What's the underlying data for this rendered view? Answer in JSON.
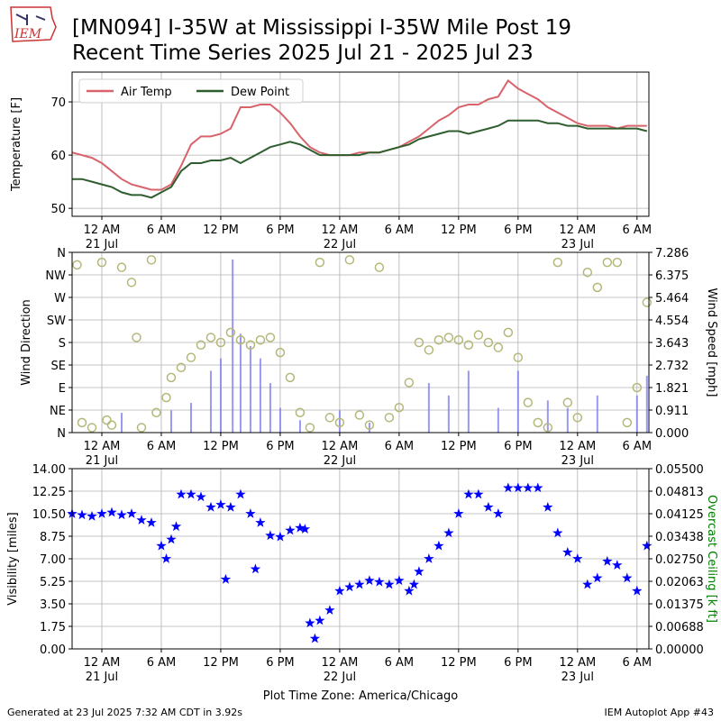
{
  "header": {
    "logo": "IEM",
    "title_lines": [
      "[MN094] I-35W at Mississippi I-35W Mile Post 19",
      "Recent Time Series 2025 Jul 21 - 2025 Jul 23"
    ]
  },
  "footer": {
    "left": "Generated at 23 Jul 2025 7:32 AM CDT in 3.92s",
    "right": "IEM Autoplot App #43",
    "xlabel": "Plot Time Zone: America/Chicago"
  },
  "chart_data": [
    {
      "type": "line",
      "ylabel": "Temperature [F]",
      "grid": true,
      "legend": "upper left",
      "xlim": [
        -3,
        55.2
      ],
      "xticks": [
        {
          "value": 0,
          "label": "12 AM\n21 Jul"
        },
        {
          "value": 6,
          "label": "6 AM"
        },
        {
          "value": 12,
          "label": "12 PM"
        },
        {
          "value": 18,
          "label": "6 PM"
        },
        {
          "value": 24,
          "label": "12 AM\n22 Jul"
        },
        {
          "value": 30,
          "label": "6 AM"
        },
        {
          "value": 36,
          "label": "12 PM"
        },
        {
          "value": 42,
          "label": "6 PM"
        },
        {
          "value": 48,
          "label": "12 AM\n23 Jul"
        },
        {
          "value": 54,
          "label": "6 AM"
        }
      ],
      "ylim": [
        48.5,
        75.6
      ],
      "yticks": [
        50,
        60,
        70
      ],
      "x": [
        -3,
        -2,
        -1,
        0,
        1,
        2,
        3,
        4,
        5,
        6,
        7,
        8,
        9,
        10,
        11,
        12,
        13,
        14,
        15,
        16,
        17,
        18,
        19,
        20,
        21,
        22,
        23,
        24,
        25,
        26,
        27,
        28,
        29,
        30,
        31,
        32,
        33,
        34,
        35,
        36,
        37,
        38,
        39,
        40,
        41,
        42,
        43,
        44,
        45,
        46,
        47,
        48,
        49,
        50,
        51,
        52,
        53,
        54,
        55
      ],
      "series": [
        {
          "name": "Air Temp",
          "color": "#d9636b",
          "values": [
            60.5,
            60,
            59.5,
            58.5,
            57,
            55.5,
            54.5,
            54,
            53.5,
            53.5,
            54.5,
            58,
            62,
            63.5,
            63.5,
            64,
            65,
            69,
            69,
            69.5,
            69.5,
            68,
            66,
            63.5,
            61.5,
            60.5,
            60,
            60,
            60,
            60.5,
            60.5,
            60.5,
            61,
            61.5,
            62.5,
            63.5,
            65,
            66.5,
            67.5,
            69,
            69.5,
            69.5,
            70.5,
            71,
            74,
            72.5,
            71.5,
            70.5,
            69,
            68,
            67,
            66,
            65.5,
            65.5,
            65.5,
            65,
            65.5,
            65.5,
            65.5
          ]
        },
        {
          "name": "Dew Point",
          "color": "#2e5e2e",
          "values": [
            55.5,
            55.5,
            55,
            54.5,
            54,
            53,
            52.5,
            52.5,
            52,
            53,
            54,
            57,
            58.5,
            58.5,
            59,
            59,
            59.5,
            58.5,
            59.5,
            60.5,
            61.5,
            62,
            62.5,
            62,
            61,
            60,
            60,
            60,
            60,
            60,
            60.5,
            60.5,
            61,
            61.5,
            62,
            63,
            63.5,
            64,
            64.5,
            64.5,
            64,
            64.5,
            65,
            65.5,
            66.5,
            66.5,
            66.5,
            66.5,
            66,
            66,
            65.5,
            65.5,
            65,
            65,
            65,
            65,
            65,
            65,
            64.5
          ]
        }
      ]
    },
    {
      "type": "scatter",
      "ylabel": "Wind Direction",
      "y2label": "Wind Speed [mph]",
      "grid": true,
      "xlim": [
        -3,
        55.2
      ],
      "xticks": [
        {
          "value": 0,
          "label": "12 AM\n21 Jul"
        },
        {
          "value": 6,
          "label": "6 AM"
        },
        {
          "value": 12,
          "label": "12 PM"
        },
        {
          "value": 18,
          "label": "6 PM"
        },
        {
          "value": 24,
          "label": "12 AM\n22 Jul"
        },
        {
          "value": 30,
          "label": "6 AM"
        },
        {
          "value": 36,
          "label": "12 PM"
        },
        {
          "value": 42,
          "label": "6 PM"
        },
        {
          "value": 48,
          "label": "12 AM\n23 Jul"
        },
        {
          "value": 54,
          "label": "6 AM"
        }
      ],
      "ylim": [
        0,
        360
      ],
      "yticks": [
        {
          "value": 0,
          "label": "N"
        },
        {
          "value": 45,
          "label": "NE"
        },
        {
          "value": 90,
          "label": "E"
        },
        {
          "value": 135,
          "label": "SE"
        },
        {
          "value": 180,
          "label": "S"
        },
        {
          "value": 225,
          "label": "SW"
        },
        {
          "value": 270,
          "label": "W"
        },
        {
          "value": 315,
          "label": "NW"
        },
        {
          "value": 360,
          "label": "N"
        }
      ],
      "y2lim": [
        0,
        7.286
      ],
      "y2ticks": [
        {
          "value": 0,
          "label": "0.000"
        },
        0.911,
        1.821,
        2.732,
        3.643,
        4.554,
        5.464,
        6.375,
        7.286
      ],
      "series": [
        {
          "type": "bar",
          "axis": "y2",
          "color": "#7f7ff0",
          "x": [
            2,
            7,
            9,
            11,
            12,
            13.2,
            14,
            15,
            16,
            17,
            18,
            20,
            24,
            27,
            33,
            35,
            37,
            40,
            42,
            45,
            47,
            50,
            54,
            55
          ],
          "values": [
            0.8,
            0.9,
            1.2,
            2.5,
            3.0,
            7.0,
            4.0,
            3.5,
            3.0,
            2.0,
            1.0,
            0.5,
            0.9,
            0.4,
            2.0,
            1.5,
            2.5,
            1.0,
            2.5,
            1.3,
            1.0,
            1.5,
            1.5,
            2.3
          ]
        },
        {
          "type": "scatter",
          "marker": "circle",
          "color": "#b5b778",
          "x": [
            -2.5,
            -2,
            -1,
            0,
            0.5,
            1,
            2,
            3,
            3.5,
            4,
            5,
            5.5,
            6.5,
            7,
            8,
            9,
            10,
            11,
            12,
            13,
            14,
            15,
            16,
            17,
            18,
            19,
            20,
            21,
            22,
            23,
            24,
            25,
            26,
            27,
            28,
            29,
            30,
            31,
            32,
            33,
            34,
            35,
            36,
            37,
            38,
            39,
            40,
            41,
            42,
            43,
            44,
            45,
            46,
            47,
            48,
            49,
            50,
            51,
            52,
            53,
            54,
            55
          ],
          "values": [
            335,
            20,
            10,
            340,
            25,
            15,
            330,
            300,
            190,
            10,
            345,
            40,
            70,
            110,
            130,
            150,
            175,
            190,
            180,
            200,
            185,
            175,
            185,
            190,
            160,
            110,
            40,
            10,
            340,
            30,
            20,
            345,
            35,
            15,
            330,
            30,
            50,
            100,
            180,
            165,
            185,
            190,
            185,
            175,
            195,
            180,
            170,
            200,
            150,
            60,
            20,
            10,
            340,
            60,
            30,
            320,
            290,
            340,
            340,
            20,
            90,
            260
          ]
        }
      ]
    },
    {
      "type": "scatter",
      "ylabel": "Visibility [miles]",
      "y2label": "Overcast Ceiling [k ft]",
      "y2label_color": "#008000",
      "grid": true,
      "xlim": [
        -3,
        55.2
      ],
      "xticks": [
        {
          "value": 0,
          "label": "12 AM\n21 Jul"
        },
        {
          "value": 6,
          "label": "6 AM"
        },
        {
          "value": 12,
          "label": "12 PM"
        },
        {
          "value": 18,
          "label": "6 PM"
        },
        {
          "value": 24,
          "label": "12 AM\n22 Jul"
        },
        {
          "value": 30,
          "label": "6 AM"
        },
        {
          "value": 36,
          "label": "12 PM"
        },
        {
          "value": 42,
          "label": "6 PM"
        },
        {
          "value": 48,
          "label": "12 AM\n23 Jul"
        },
        {
          "value": 54,
          "label": "6 AM"
        }
      ],
      "ylim": [
        0,
        14
      ],
      "yticks": [
        {
          "value": 0,
          "label": "0.00"
        },
        1.75,
        {
          "value": 3.5,
          "label": "3.50"
        },
        5.25,
        {
          "value": 7,
          "label": "7.00"
        },
        8.75,
        {
          "value": 10.5,
          "label": "10.50"
        },
        12.25,
        {
          "value": 14,
          "label": "14.00"
        }
      ],
      "y2lim": [
        0,
        0.055
      ],
      "y2ticks": [
        {
          "value": 0,
          "label": "0.00000"
        },
        0.00688,
        0.01375,
        0.02063,
        {
          "value": 0.0275,
          "label": "0.02750"
        },
        0.03438,
        0.04125,
        0.04813,
        {
          "value": 0.055,
          "label": "0.05500"
        }
      ],
      "series": [
        {
          "type": "scatter",
          "marker": "star",
          "color": "#0000ff",
          "x": [
            -3,
            -2,
            -1,
            0,
            1,
            2,
            3,
            4,
            5,
            6,
            6.5,
            7,
            7.5,
            8,
            9,
            10,
            11,
            12,
            12.5,
            13,
            14,
            15,
            15.5,
            16,
            17,
            18,
            19,
            20,
            20.5,
            21,
            21.5,
            22,
            23,
            24,
            25,
            26,
            27,
            28,
            29,
            30,
            31,
            31.5,
            32,
            33,
            34,
            35,
            36,
            37,
            38,
            39,
            40,
            41,
            42,
            43,
            44,
            45,
            46,
            47,
            48,
            49,
            50,
            51,
            52,
            53,
            54,
            55
          ],
          "values": [
            10.5,
            10.4,
            10.3,
            10.5,
            10.6,
            10.4,
            10.5,
            10,
            9.8,
            8,
            7,
            8.5,
            9.5,
            12,
            12,
            11.8,
            11,
            11.2,
            5.4,
            11,
            12,
            10.5,
            6.2,
            9.8,
            8.8,
            8.7,
            9.2,
            9.4,
            9.3,
            2,
            0.8,
            2.2,
            3,
            4.5,
            4.8,
            5,
            5.3,
            5.2,
            5,
            5.3,
            4.5,
            5,
            6,
            7,
            8,
            9,
            10.5,
            12,
            12,
            11,
            10.5,
            12.5,
            12.5,
            12.5,
            12.5,
            11,
            9,
            7.5,
            7,
            5,
            5.5,
            6.8,
            6.5,
            5.5,
            4.5,
            8
          ]
        }
      ]
    }
  ]
}
